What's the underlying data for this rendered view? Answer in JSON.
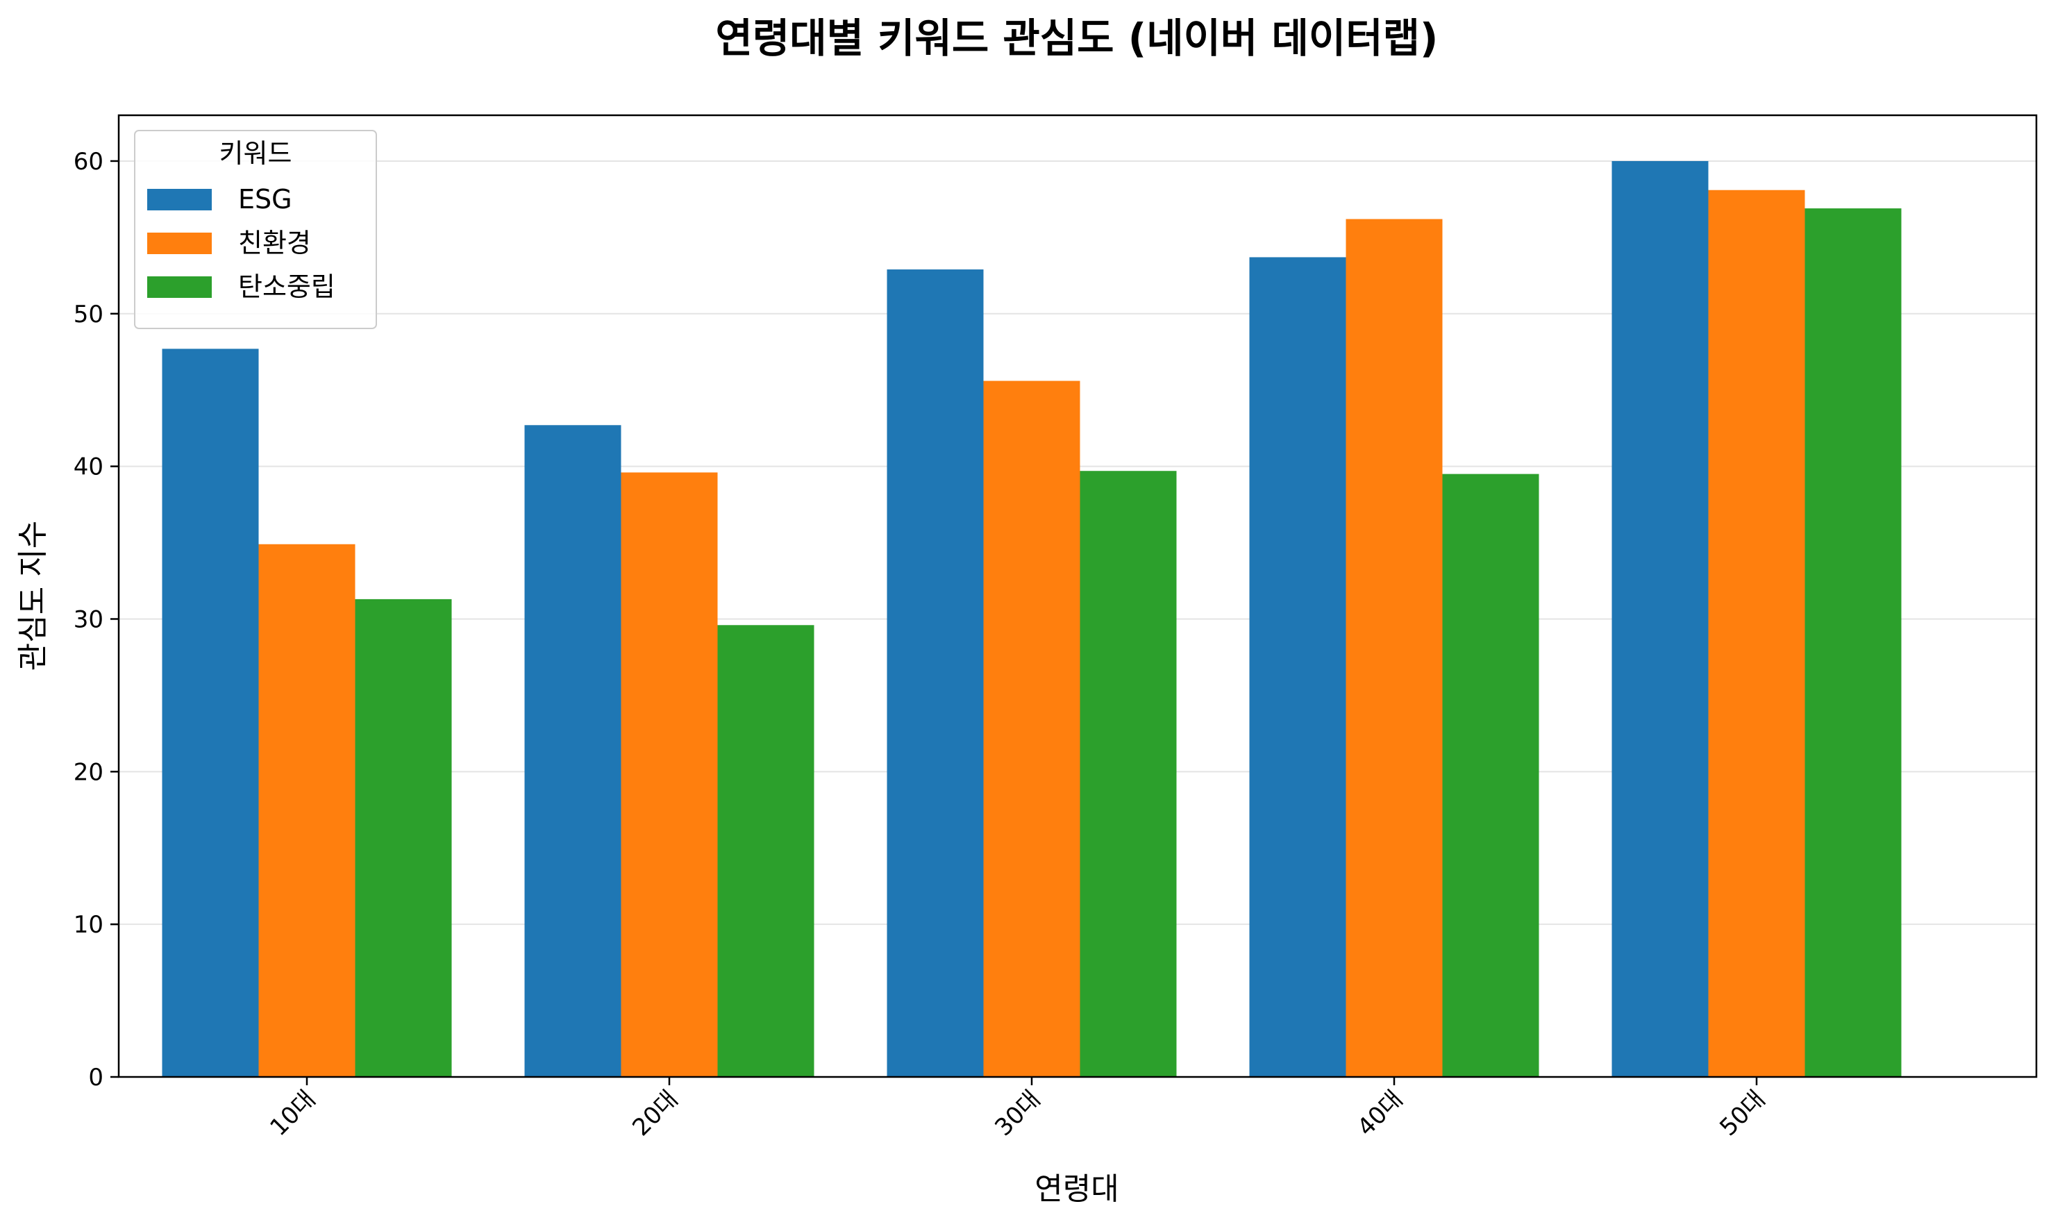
{
  "chart_data": {
    "type": "bar",
    "title": "연령대별 키워드 관심도 (네이버 데이터랩)",
    "xlabel": "연령대",
    "ylabel": "관심도 지수",
    "categories": [
      "10대",
      "20대",
      "30대",
      "40대",
      "50대"
    ],
    "series": [
      {
        "name": "ESG",
        "color": "#1f77b4",
        "values": [
          47.7,
          42.7,
          52.9,
          53.7,
          60.0
        ]
      },
      {
        "name": "친환경",
        "color": "#ff7f0e",
        "values": [
          34.9,
          39.6,
          45.6,
          56.2,
          58.1
        ]
      },
      {
        "name": "탄소중립",
        "color": "#2ca02c",
        "values": [
          31.3,
          29.6,
          39.7,
          39.5,
          56.9
        ]
      }
    ],
    "ylim": [
      0,
      63
    ],
    "yticks": [
      0,
      10,
      20,
      30,
      40,
      50,
      60
    ],
    "grid": "horizontal",
    "legend": {
      "title": "키워드",
      "placement": "top-left"
    }
  }
}
